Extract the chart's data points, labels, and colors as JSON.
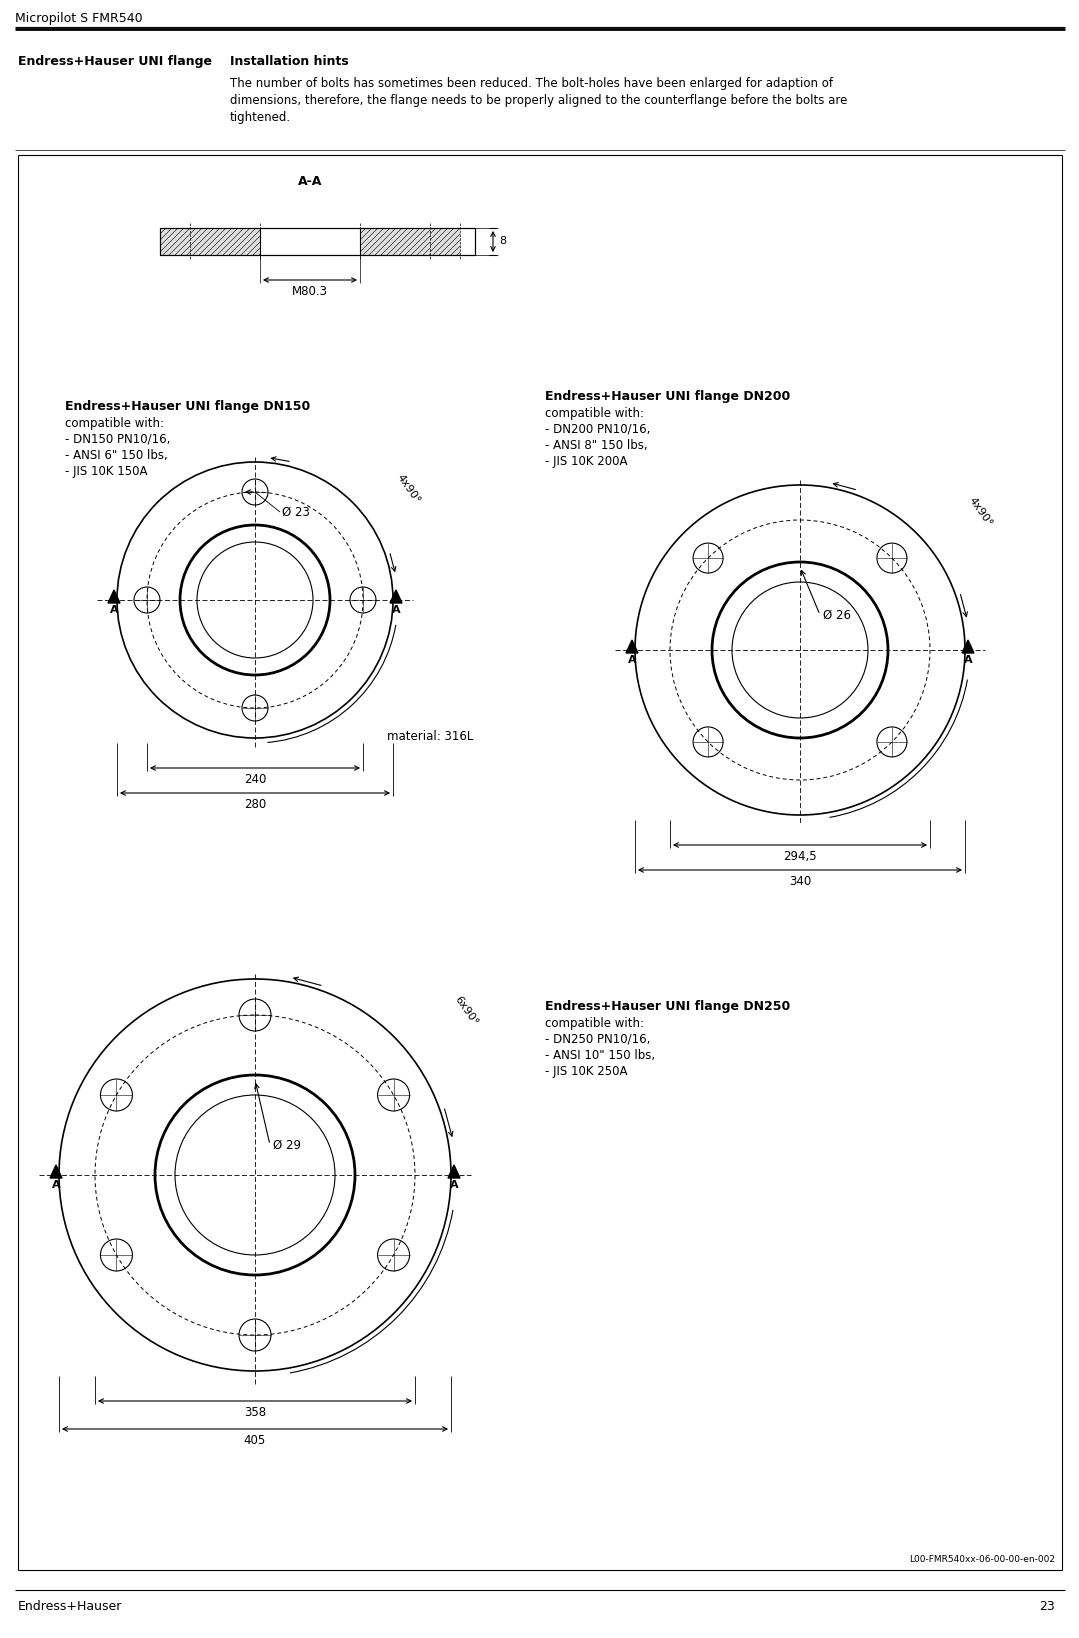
{
  "page_title": "Micropilot S FMR540",
  "page_number": "23",
  "footer_left": "Endress+Hauser",
  "section_label": "Endress+Hauser UNI flange",
  "section_title": "Installation hints",
  "section_text_line1": "The number of bolts has sometimes been reduced. The bolt-holes have been enlarged for adaption of",
  "section_text_line2": "dimensions, therefore, the flange needs to be properly aligned to the counterflange before the bolts are",
  "section_text_line3": "tightened.",
  "figure_code": "L00-FMR540xx-06-00-00-en-002",
  "material_label": "material: 316L",
  "aa_label": "A-A",
  "m80_label": "M80.3",
  "flange_depth_label": "8",
  "dn150_title": "Endress+Hauser UNI flange DN150",
  "dn150_compat_line0": "compatible with:",
  "dn150_compat_line1": "- DN150 PN10/16,",
  "dn150_compat_line2": "- ANSI 6\" 150 lbs,",
  "dn150_compat_line3": "- JIS 10K 150A",
  "dn200_title": "Endress+Hauser UNI flange DN200",
  "dn200_compat_line0": "compatible with:",
  "dn200_compat_line1": "- DN200 PN10/16,",
  "dn200_compat_line2": "- ANSI 8\" 150 lbs,",
  "dn200_compat_line3": "- JIS 10K 200A",
  "dn250_title": "Endress+Hauser UNI flange DN250",
  "dn250_compat_line0": "compatible with:",
  "dn250_compat_line1": "- DN250 PN10/16,",
  "dn250_compat_line2": "- ANSI 10\" 150 lbs,",
  "dn250_compat_line3": "- JIS 10K 250A",
  "dn150_bolts_label": "4x90°",
  "dn200_bolts_label": "4x90°",
  "dn250_bolts_label": "6x90°",
  "dn150_bore": "Ø 23",
  "dn200_bore": "Ø 26",
  "dn250_bore": "Ø 29",
  "dn150_inner_dim": "240",
  "dn150_outer_dim": "280",
  "dn200_inner_dim": "294,5",
  "dn200_outer_dim": "340",
  "dn250_inner_dim": "358",
  "dn250_outer_dim": "405",
  "bg_color": "#ffffff"
}
